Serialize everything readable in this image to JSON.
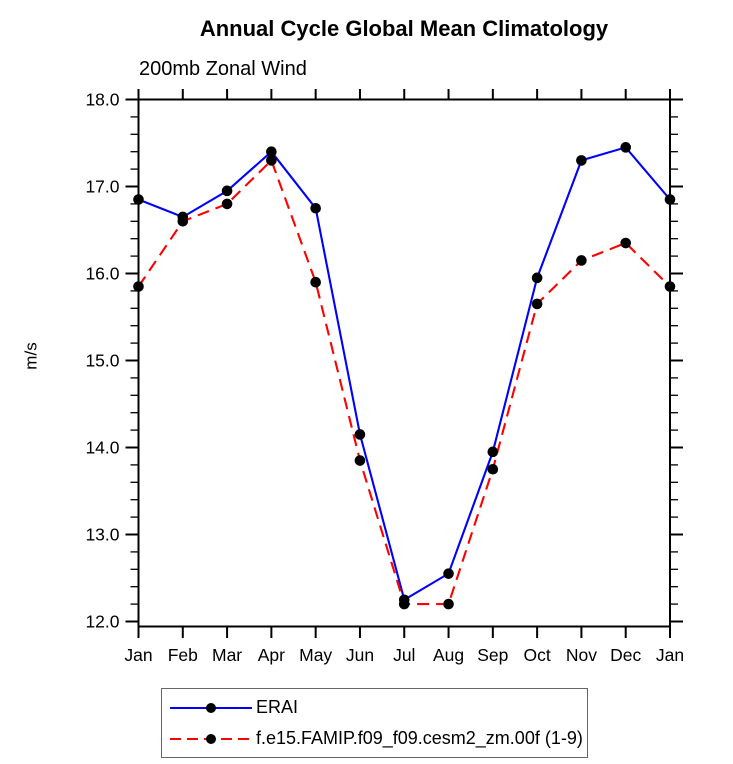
{
  "colors": {
    "background": "#ffffff",
    "axis": "#000000",
    "text": "#000000",
    "erai_line": "#0000ff",
    "model_line": "#ff0000",
    "marker": "#000000"
  },
  "chart_data": {
    "type": "line",
    "title": "Annual Cycle Global Mean Climatology",
    "subtitle": "200mb Zonal Wind",
    "xlabel": "",
    "ylabel": "m/s",
    "categories": [
      "Jan",
      "Feb",
      "Mar",
      "Apr",
      "May",
      "Jun",
      "Jul",
      "Aug",
      "Sep",
      "Oct",
      "Nov",
      "Dec",
      "Jan"
    ],
    "ylim": [
      12.0,
      18.0
    ],
    "ytick_labels": [
      "12.0",
      "13.0",
      "14.0",
      "15.0",
      "16.0",
      "17.0",
      "18.0"
    ],
    "y_minor_interval": 0.2,
    "grid": false,
    "legend_position": "bottom-left",
    "series": [
      {
        "name": "ERAI",
        "line_color": "#0000ff",
        "line_style": "solid",
        "marker": "filled-circle",
        "marker_color": "#000000",
        "values": [
          16.85,
          16.65,
          16.95,
          17.4,
          16.75,
          14.15,
          12.25,
          12.55,
          13.95,
          15.95,
          17.3,
          17.45,
          16.85
        ]
      },
      {
        "name": "f.e15.FAMIP.f09_f09.cesm2_zm.00f (1-9)",
        "line_color": "#ff0000",
        "line_style": "dashed",
        "marker": "filled-circle",
        "marker_color": "#000000",
        "values": [
          15.85,
          16.6,
          16.8,
          17.3,
          15.9,
          13.85,
          12.2,
          12.2,
          13.75,
          15.65,
          16.15,
          16.35,
          15.85
        ]
      }
    ]
  }
}
